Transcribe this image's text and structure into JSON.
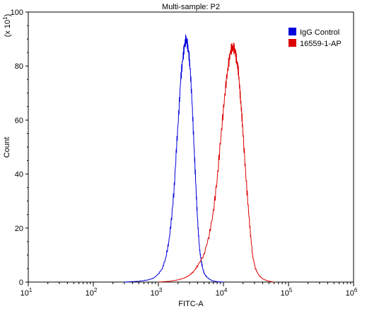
{
  "chart_data": {
    "type": "line",
    "title": "Multi-sample: P2",
    "xlabel": "FITC-A",
    "ylabel": "Count",
    "y_multiplier_label": "(x 10",
    "y_multiplier_exp": "1",
    "x_scale": "log",
    "xlim": [
      10,
      1000000
    ],
    "ylim": [
      0,
      100
    ],
    "y_ticks": [
      0,
      20,
      40,
      60,
      80,
      100
    ],
    "x_ticks": [
      {
        "value": 10,
        "base": "10",
        "exp": "1"
      },
      {
        "value": 100,
        "base": "10",
        "exp": "2"
      },
      {
        "value": 1000,
        "base": "10",
        "exp": "3"
      },
      {
        "value": 10000,
        "base": "10",
        "exp": "4"
      },
      {
        "value": 100000,
        "base": "10",
        "exp": "5"
      },
      {
        "value": 1000000,
        "base": "10",
        "exp": "6"
      }
    ],
    "grid": false,
    "legend_position": "top-right",
    "series": [
      {
        "name": "IgG Control",
        "color": "#0000dd",
        "x": [
          300,
          500,
          700,
          850,
          1000,
          1150,
          1300,
          1450,
          1600,
          1750,
          1900,
          2050,
          2200,
          2350,
          2500,
          2650,
          2800,
          2950,
          3100,
          3300,
          3500,
          3700,
          3900,
          4100,
          4300,
          4550,
          4800,
          5100,
          5500,
          6000,
          6600,
          7300,
          8500,
          10000
        ],
        "y": [
          0,
          0.3,
          0.8,
          1.5,
          3,
          5,
          9,
          15,
          24,
          35,
          50,
          62,
          75,
          82,
          87,
          90,
          88,
          84,
          78,
          66,
          52,
          40,
          28,
          19,
          12,
          8,
          5,
          3,
          2,
          1.2,
          0.6,
          0.3,
          0.1,
          0
        ]
      },
      {
        "name": "16559-1-AP",
        "color": "#dd0000",
        "x": [
          1000,
          1500,
          2000,
          2500,
          3000,
          3500,
          4000,
          5000,
          6000,
          7000,
          8000,
          9000,
          10000,
          11000,
          12000,
          13000,
          14000,
          15000,
          16000,
          17000,
          18000,
          19000,
          20000,
          22000,
          24000,
          26000,
          28000,
          31000,
          35000,
          40000,
          48000,
          60000
        ],
        "y": [
          0,
          0.3,
          0.8,
          1.5,
          2.5,
          4,
          6,
          10,
          17,
          26,
          38,
          52,
          64,
          74,
          81,
          86,
          87,
          86,
          82,
          78,
          70,
          63,
          55,
          40,
          28,
          18,
          10,
          5,
          2.5,
          1.2,
          0.4,
          0
        ]
      }
    ]
  }
}
